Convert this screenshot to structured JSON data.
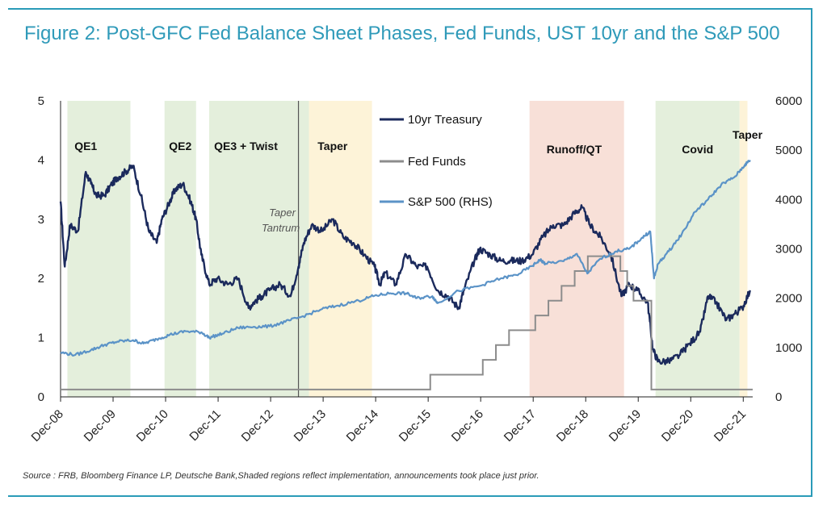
{
  "figure": {
    "title": "Figure 2: Post-GFC Fed Balance Sheet Phases, Fed Funds, UST 10yr and the S&P 500",
    "source": "Source : FRB, Bloomberg Finance LP, Deutsche Bank,Shaded regions reflect implementation, announcements took place just prior."
  },
  "chart_data": {
    "type": "line",
    "x_axis": {
      "ticks": [
        "Dec-08",
        "Dec-09",
        "Dec-10",
        "Dec-11",
        "Dec-12",
        "Dec-13",
        "Dec-14",
        "Dec-15",
        "Dec-16",
        "Dec-17",
        "Dec-18",
        "Dec-19",
        "Dec-20",
        "Dec-21"
      ],
      "range": [
        "2008-12",
        "2022-02"
      ]
    },
    "y_left": {
      "range": [
        0,
        5
      ],
      "ticks": [
        "0",
        "1",
        "2",
        "3",
        "4",
        "5"
      ]
    },
    "y_right": {
      "range": [
        0,
        6000
      ],
      "ticks": [
        "0",
        "1000",
        "2000",
        "3000",
        "4000",
        "5000",
        "6000"
      ]
    },
    "legend": {
      "placement": "top-center",
      "entries": [
        "10yr Treasury",
        "Fed Funds",
        "S&P 500 (RHS)"
      ]
    },
    "grid": false,
    "phases": [
      {
        "label": "QE1",
        "start": 2009.05,
        "end": 2010.25,
        "color": "#e4efdc"
      },
      {
        "label": "QE2",
        "start": 2010.9,
        "end": 2011.5,
        "color": "#e4efdc"
      },
      {
        "label": "QE3 + Twist",
        "start": 2011.75,
        "end": 2013.65,
        "color": "#e4efdc"
      },
      {
        "label": "Taper",
        "start": 2013.65,
        "end": 2014.85,
        "color": "#fdf3d8"
      },
      {
        "label": "Runoff/QT",
        "start": 2017.85,
        "end": 2019.65,
        "color": "#f8e0d8"
      },
      {
        "label": "Covid",
        "start": 2020.25,
        "end": 2021.85,
        "color": "#e4efdc"
      },
      {
        "label": "Taper",
        "start": 2021.85,
        "end": 2022.0,
        "color": "#fdf3d8"
      }
    ],
    "annotation": {
      "text_line1": "Taper",
      "text_line2": "Tantrum",
      "date": 2013.45
    },
    "series": [
      {
        "name": "10yr Treasury",
        "axis": "left",
        "color": "#1b2a5c",
        "x": [
          2008.92,
          2009.0,
          2009.1,
          2009.25,
          2009.4,
          2009.5,
          2009.6,
          2009.75,
          2009.9,
          2010.0,
          2010.15,
          2010.3,
          2010.45,
          2010.6,
          2010.75,
          2010.85,
          2011.0,
          2011.1,
          2011.25,
          2011.4,
          2011.5,
          2011.6,
          2011.75,
          2011.9,
          2012.1,
          2012.3,
          2012.5,
          2012.6,
          2012.75,
          2012.9,
          2013.1,
          2013.3,
          2013.45,
          2013.55,
          2013.7,
          2013.9,
          2014.1,
          2014.3,
          2014.5,
          2014.7,
          2014.9,
          2015.0,
          2015.1,
          2015.3,
          2015.5,
          2015.7,
          2015.9,
          2016.1,
          2016.3,
          2016.5,
          2016.6,
          2016.8,
          2016.9,
          2017.1,
          2017.3,
          2017.5,
          2017.7,
          2017.9,
          2018.1,
          2018.3,
          2018.5,
          2018.7,
          2018.85,
          2019.0,
          2019.2,
          2019.4,
          2019.6,
          2019.75,
          2019.9,
          2020.1,
          2020.2,
          2020.3,
          2020.5,
          2020.7,
          2020.9,
          2021.1,
          2021.25,
          2021.4,
          2021.6,
          2021.75,
          2021.9,
          2022.05
        ],
        "values": [
          3.3,
          2.2,
          2.9,
          2.8,
          3.8,
          3.6,
          3.4,
          3.4,
          3.6,
          3.7,
          3.8,
          3.9,
          3.4,
          2.8,
          2.6,
          3.0,
          3.3,
          3.5,
          3.6,
          3.3,
          3.0,
          2.4,
          1.9,
          2.0,
          1.9,
          2.0,
          1.5,
          1.6,
          1.7,
          1.8,
          1.9,
          1.7,
          2.2,
          2.6,
          2.9,
          2.8,
          3.0,
          2.7,
          2.6,
          2.4,
          2.2,
          1.9,
          2.1,
          1.9,
          2.4,
          2.2,
          2.2,
          1.8,
          1.7,
          1.5,
          1.8,
          2.3,
          2.5,
          2.4,
          2.3,
          2.3,
          2.3,
          2.4,
          2.7,
          2.9,
          2.9,
          3.1,
          3.2,
          2.9,
          2.7,
          2.4,
          1.7,
          1.9,
          1.8,
          1.6,
          0.8,
          0.6,
          0.6,
          0.7,
          0.9,
          1.1,
          1.7,
          1.6,
          1.3,
          1.4,
          1.5,
          1.8
        ]
      },
      {
        "name": "Fed Funds",
        "axis": "left",
        "color": "#8c8c8c",
        "x": [
          2008.92,
          2015.96,
          2016.96,
          2017.21,
          2017.46,
          2017.96,
          2018.21,
          2018.46,
          2018.71,
          2018.96,
          2019.58,
          2019.71,
          2019.83,
          2020.17,
          2022.1
        ],
        "values": [
          0.125,
          0.375,
          0.625,
          0.875,
          1.125,
          1.375,
          1.625,
          1.875,
          2.125,
          2.375,
          2.125,
          1.875,
          1.625,
          0.125,
          0.125
        ]
      },
      {
        "name": "S&P 500 (RHS)",
        "axis": "right",
        "color": "#5b93c7",
        "x": [
          2008.92,
          2009.2,
          2009.5,
          2009.75,
          2010.0,
          2010.3,
          2010.5,
          2010.75,
          2011.0,
          2011.3,
          2011.6,
          2011.75,
          2012.0,
          2012.3,
          2012.6,
          2012.9,
          2013.2,
          2013.5,
          2013.9,
          2014.2,
          2014.6,
          2014.9,
          2015.2,
          2015.5,
          2015.7,
          2016.0,
          2016.1,
          2016.5,
          2016.9,
          2017.3,
          2017.6,
          2017.9,
          2018.05,
          2018.15,
          2018.5,
          2018.75,
          2018.95,
          2019.2,
          2019.5,
          2019.75,
          2020.0,
          2020.15,
          2020.22,
          2020.3,
          2020.5,
          2020.75,
          2021.0,
          2021.25,
          2021.5,
          2021.75,
          2021.95,
          2022.05
        ],
        "values": [
          900,
          850,
          950,
          1050,
          1120,
          1150,
          1080,
          1170,
          1260,
          1330,
          1310,
          1200,
          1280,
          1400,
          1420,
          1430,
          1520,
          1620,
          1780,
          1850,
          1950,
          2050,
          2100,
          2100,
          2000,
          2040,
          1900,
          2150,
          2250,
          2400,
          2470,
          2650,
          2780,
          2700,
          2750,
          2900,
          2500,
          2800,
          2950,
          3000,
          3230,
          3350,
          2400,
          2700,
          2950,
          3300,
          3750,
          4000,
          4300,
          4450,
          4700,
          4800
        ]
      }
    ]
  }
}
